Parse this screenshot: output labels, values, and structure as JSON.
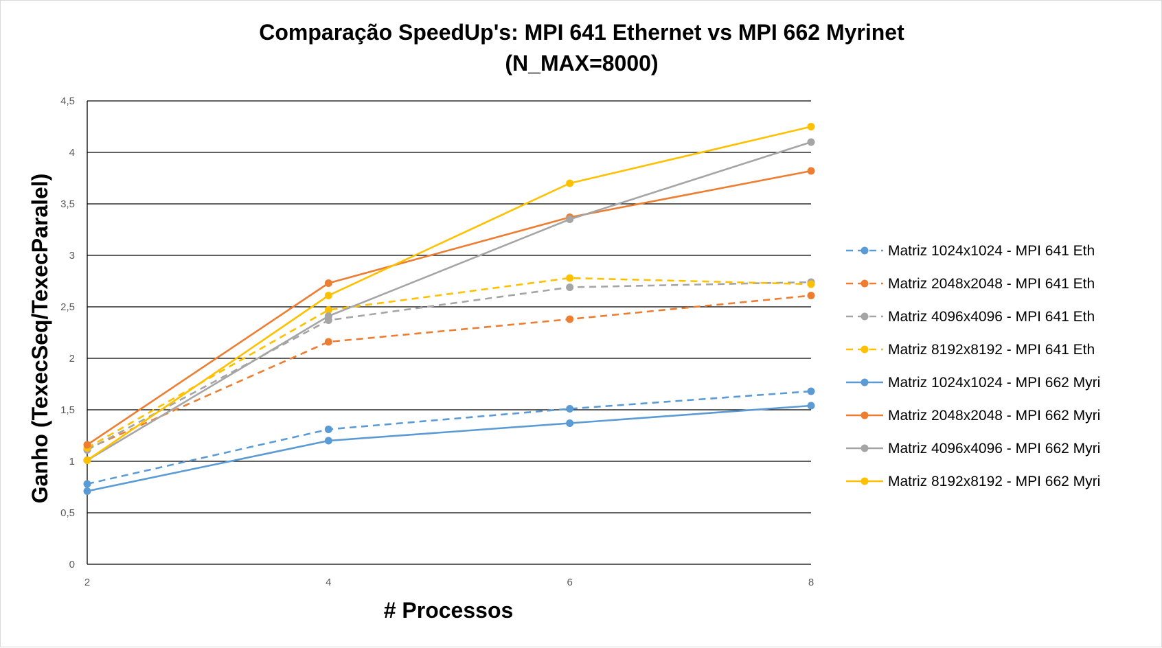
{
  "chart_data": {
    "type": "line",
    "title": "Comparação SpeedUp's: MPI 641 Ethernet vs MPI 662 Myrinet",
    "subtitle": "(N_MAX=8000)",
    "xlabel": "# Processos",
    "ylabel": "Ganho (TexecSeq/TexecParalel)",
    "x": [
      2,
      4,
      6,
      8
    ],
    "x_tick_labels": [
      "2",
      "4",
      "6",
      "8"
    ],
    "ylim": [
      0,
      4.5
    ],
    "y_ticks": [
      0,
      0.5,
      1,
      1.5,
      2,
      2.5,
      3,
      3.5,
      4,
      4.5
    ],
    "y_tick_labels": [
      "0",
      "0,5",
      "1",
      "1,5",
      "2",
      "2,5",
      "3",
      "3,5",
      "4",
      "4,5"
    ],
    "grid": true,
    "legend_position": "right",
    "series": [
      {
        "name": "Matriz 1024x1024 - MPI 641 Eth",
        "color": "#5b9bd5",
        "dashed": true,
        "values": [
          0.78,
          1.31,
          1.51,
          1.68
        ]
      },
      {
        "name": "Matriz 2048x2048 - MPI 641 Eth",
        "color": "#ed7d31",
        "dashed": true,
        "values": [
          1.12,
          2.16,
          2.38,
          2.61
        ]
      },
      {
        "name": "Matriz 4096x4096 - MPI 641 Eth",
        "color": "#a5a5a5",
        "dashed": true,
        "values": [
          1.11,
          2.37,
          2.69,
          2.74
        ]
      },
      {
        "name": "Matriz 8192x8192 - MPI 641 Eth",
        "color": "#ffc000",
        "dashed": true,
        "values": [
          1.13,
          2.47,
          2.78,
          2.72
        ]
      },
      {
        "name": "Matriz 1024x1024 - MPI 662 Myri",
        "color": "#5b9bd5",
        "dashed": false,
        "values": [
          0.71,
          1.2,
          1.37,
          1.54
        ]
      },
      {
        "name": "Matriz 2048x2048 - MPI 662 Myri",
        "color": "#ed7d31",
        "dashed": false,
        "values": [
          1.16,
          2.73,
          3.37,
          3.82
        ]
      },
      {
        "name": "Matriz 4096x4096 - MPI 662 Myri",
        "color": "#a5a5a5",
        "dashed": false,
        "values": [
          1.01,
          2.41,
          3.35,
          4.1
        ]
      },
      {
        "name": "Matriz 8192x8192 - MPI 662 Myri",
        "color": "#ffc000",
        "dashed": false,
        "values": [
          1.01,
          2.61,
          3.7,
          4.25
        ]
      }
    ]
  }
}
